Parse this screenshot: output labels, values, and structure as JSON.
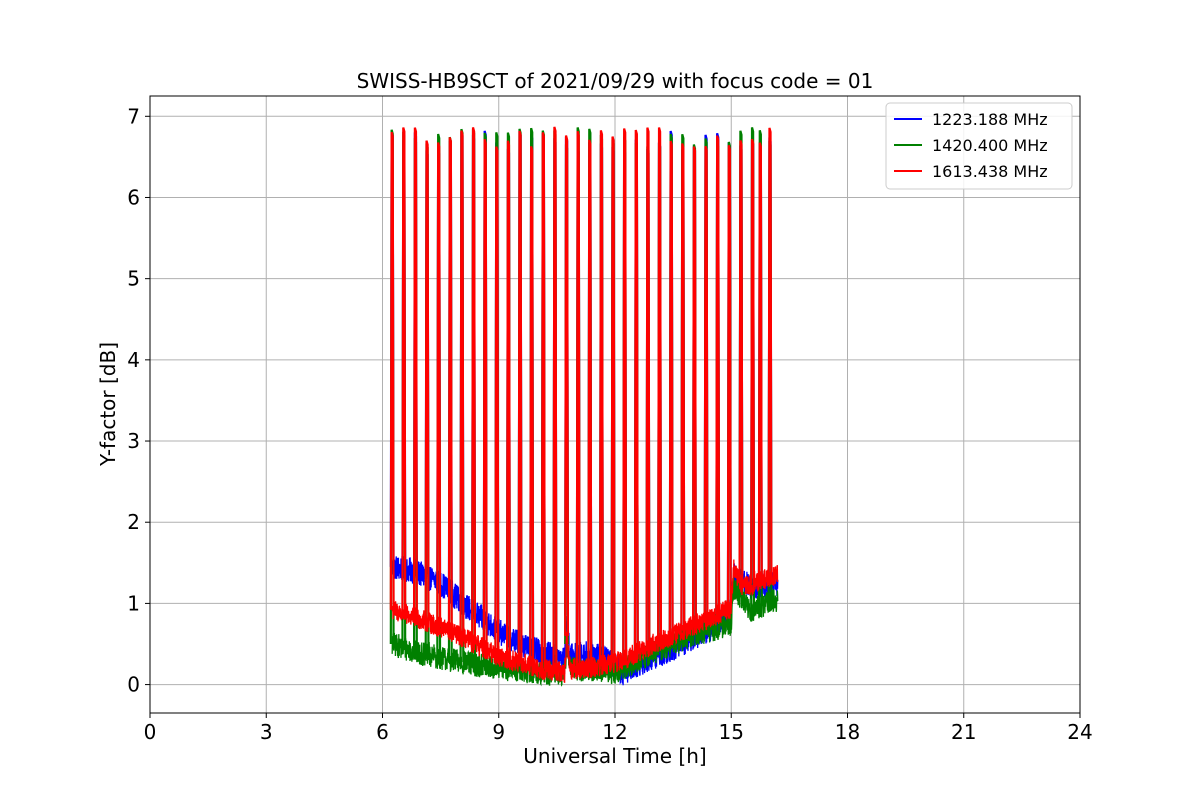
{
  "chart_data": {
    "type": "line",
    "title": "SWISS-HB9SCT of 2021/09/29 with focus code = 01",
    "xlabel": "Universal Time [h]",
    "ylabel": "Y-factor [dB]",
    "xlim": [
      0,
      24
    ],
    "ylim": [
      -0.35,
      7.25
    ],
    "xticks": [
      0,
      3,
      6,
      9,
      12,
      15,
      18,
      21,
      24
    ],
    "yticks": [
      0,
      1,
      2,
      3,
      4,
      5,
      6,
      7
    ],
    "grid": true,
    "legend_position": "top-right",
    "series": [
      {
        "name": "1223.188 MHz",
        "color": "#0000ff",
        "baseline": [
          [
            6.25,
            1.45
          ],
          [
            6.8,
            1.4
          ],
          [
            7.5,
            1.25
          ],
          [
            8.2,
            0.95
          ],
          [
            9.0,
            0.65
          ],
          [
            9.8,
            0.45
          ],
          [
            10.7,
            0.3
          ],
          [
            10.75,
            0.85
          ],
          [
            10.85,
            0.35
          ],
          [
            11.5,
            0.4
          ],
          [
            12.2,
            0.15
          ],
          [
            12.8,
            0.3
          ],
          [
            13.5,
            0.45
          ],
          [
            14.5,
            0.7
          ],
          [
            15.0,
            0.9
          ],
          [
            15.05,
            1.35
          ],
          [
            15.5,
            1.2
          ],
          [
            16.2,
            1.25
          ]
        ],
        "band": 0.16,
        "spike_peak": 6.7,
        "spike_times": [
          6.25,
          6.55,
          6.85,
          7.15,
          7.45,
          7.75,
          8.05,
          8.35,
          8.65,
          8.95,
          9.25,
          9.55,
          9.85,
          10.15,
          10.45,
          10.75,
          11.05,
          11.35,
          11.65,
          11.95,
          12.25,
          12.55,
          12.85,
          13.15,
          13.45,
          13.75,
          14.05,
          14.35,
          14.65,
          14.95,
          15.25,
          15.55,
          15.75,
          16.0
        ]
      },
      {
        "name": "1420.400 MHz",
        "color": "#008000",
        "baseline": [
          [
            6.25,
            0.5
          ],
          [
            7.0,
            0.38
          ],
          [
            8.0,
            0.28
          ],
          [
            9.0,
            0.2
          ],
          [
            10.0,
            0.15
          ],
          [
            10.7,
            0.12
          ],
          [
            10.75,
            0.5
          ],
          [
            10.85,
            0.2
          ],
          [
            12.0,
            0.15
          ],
          [
            13.0,
            0.4
          ],
          [
            14.0,
            0.6
          ],
          [
            15.0,
            0.75
          ],
          [
            15.05,
            1.2
          ],
          [
            15.5,
            0.92
          ],
          [
            16.2,
            1.05
          ]
        ],
        "band": 0.15,
        "spike_peak": 6.75,
        "spike_times": [
          6.25,
          6.55,
          6.85,
          7.15,
          7.45,
          7.75,
          8.05,
          8.35,
          8.65,
          8.95,
          9.25,
          9.55,
          9.85,
          10.15,
          10.45,
          10.75,
          11.05,
          11.35,
          11.65,
          11.95,
          12.25,
          12.55,
          12.85,
          13.15,
          13.45,
          13.75,
          14.05,
          14.35,
          14.65,
          14.95,
          15.25,
          15.55,
          15.75,
          16.0
        ]
      },
      {
        "name": "1613.438 MHz",
        "color": "#ff0000",
        "baseline": [
          [
            6.25,
            0.92
          ],
          [
            7.0,
            0.8
          ],
          [
            8.0,
            0.6
          ],
          [
            9.0,
            0.35
          ],
          [
            10.0,
            0.2
          ],
          [
            10.7,
            0.15
          ],
          [
            10.75,
            0.6
          ],
          [
            10.85,
            0.18
          ],
          [
            11.5,
            0.22
          ],
          [
            12.2,
            0.3
          ],
          [
            13.0,
            0.5
          ],
          [
            14.0,
            0.72
          ],
          [
            15.0,
            0.95
          ],
          [
            15.05,
            1.45
          ],
          [
            15.3,
            1.2
          ],
          [
            16.2,
            1.35
          ]
        ],
        "band": 0.13,
        "spike_peak": 6.75,
        "spike_times": [
          6.25,
          6.55,
          6.85,
          7.15,
          7.45,
          7.75,
          8.05,
          8.35,
          8.65,
          8.95,
          9.25,
          9.55,
          9.85,
          10.15,
          10.45,
          10.75,
          11.05,
          11.35,
          11.65,
          11.95,
          12.25,
          12.55,
          12.85,
          13.15,
          13.45,
          13.75,
          14.05,
          14.35,
          14.65,
          14.95,
          15.25,
          15.55,
          15.75,
          16.0
        ]
      }
    ]
  }
}
